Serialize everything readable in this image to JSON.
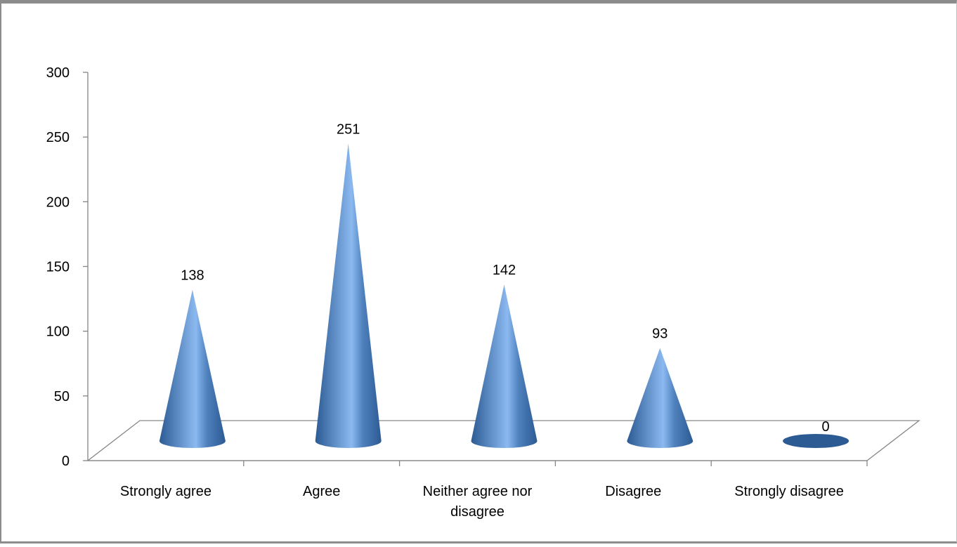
{
  "chart_data": {
    "type": "bar",
    "style": "3d-cone",
    "categories": [
      "Strongly agree",
      "Agree",
      "Neither agree nor disagree",
      "Disagree",
      "Strongly disagree"
    ],
    "category_label_lines": [
      [
        "Strongly agree"
      ],
      [
        "Agree"
      ],
      [
        "Neither agree nor",
        "disagree"
      ],
      [
        "Disagree"
      ],
      [
        "Strongly disagree"
      ]
    ],
    "values": [
      138,
      251,
      142,
      93,
      0
    ],
    "data_labels": [
      "138",
      "251",
      "142",
      "93",
      "0"
    ],
    "y_ticks": [
      "0",
      "50",
      "100",
      "150",
      "200",
      "250",
      "300"
    ],
    "title": "",
    "xlabel": "",
    "ylabel": "",
    "ylim": [
      0,
      300
    ],
    "grid": false,
    "legend": false,
    "colors": {
      "cone_dark": "#2c5a93",
      "cone_mid": "#4f81bd",
      "cone_light": "#8bb9f0",
      "axis": "#868686",
      "frame": "#8c8c8c"
    }
  }
}
